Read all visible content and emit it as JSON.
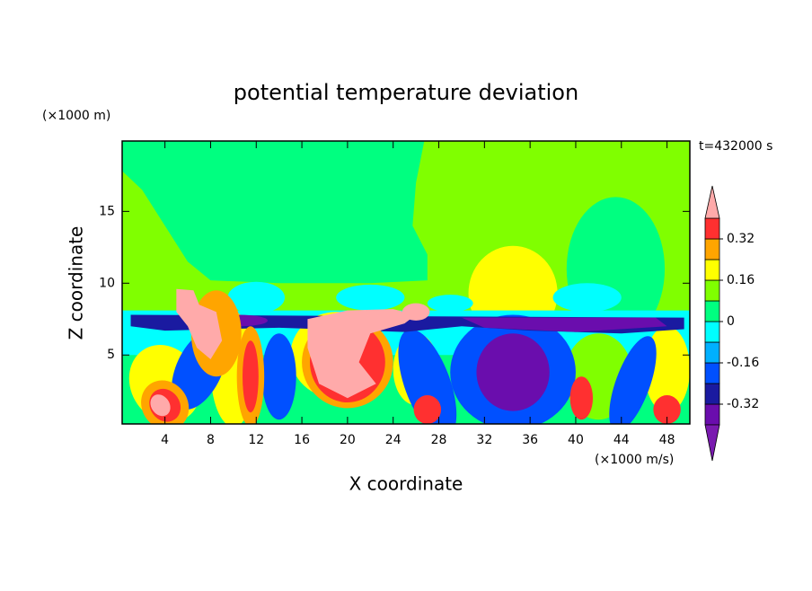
{
  "chart_data": {
    "type": "contour",
    "title": "potential temperature deviation",
    "x_label": "X coordinate",
    "y_label": "Z coordinate",
    "x_unit_label": "(×1000 m/s)",
    "y_unit_label": "(×1000 m)",
    "annotation": "t=432000 s",
    "xlim": [
      0.25,
      50
    ],
    "xticks": [
      4,
      8,
      12,
      16,
      20,
      24,
      28,
      32,
      36,
      40,
      44,
      48
    ],
    "ylim": [
      0.2,
      19.9
    ],
    "yticks": [
      5,
      10,
      15
    ],
    "colorbar": {
      "levels": [
        -0.4,
        -0.32,
        -0.24,
        -0.16,
        -0.08,
        0,
        0.08,
        0.16,
        0.24,
        0.32,
        0.4
      ],
      "colors": [
        "#6a0dad",
        "#1a1aa0",
        "#0050ff",
        "#00b0ff",
        "#00ffff",
        "#00ff80",
        "#80ff00",
        "#ffff00",
        "#ffa500",
        "#ff3030"
      ],
      "under_color": "#7a1ab0",
      "over_color": "#ffaaaa",
      "ticks": [
        -0.32,
        -0.16,
        0,
        0.16,
        0.32
      ]
    }
  }
}
